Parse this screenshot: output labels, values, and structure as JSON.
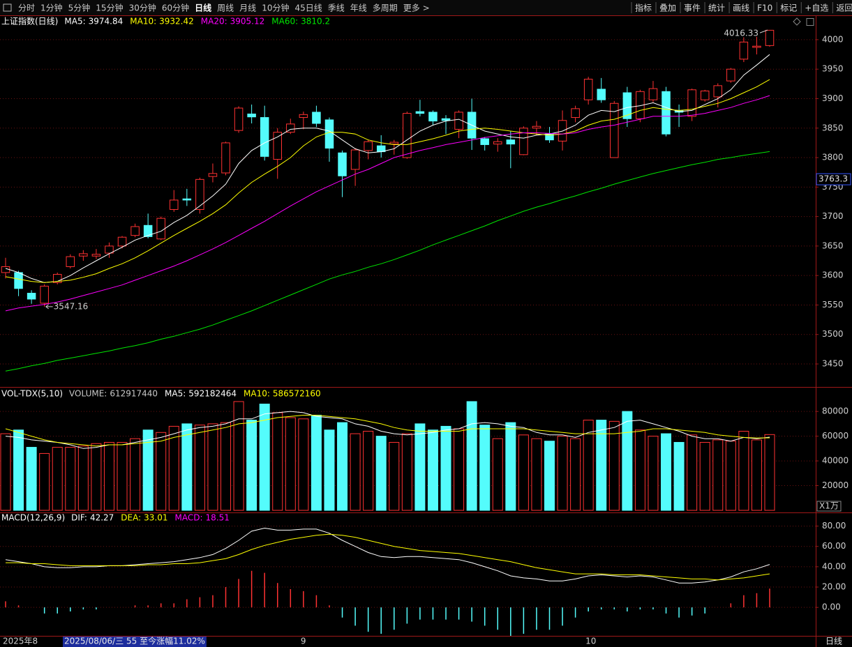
{
  "toolbar": {
    "tabs": [
      "分时",
      "1分钟",
      "5分钟",
      "15分钟",
      "30分钟",
      "60分钟",
      "日线",
      "周线",
      "月线",
      "10分钟",
      "45日线",
      "季线",
      "年线",
      "多周期",
      "更多 >"
    ],
    "active_index": 6,
    "buttons": [
      "指标",
      "叠加",
      "事件",
      "统计",
      "画线",
      "F10",
      "标记",
      "+自选",
      "返回"
    ]
  },
  "status_text": "2025/08/06/三 55 至今涨幅11.02%",
  "period_label": "日线",
  "chart_data": [
    {
      "type": "candlestick",
      "title": "上证指数(日线)",
      "categories": [
        "2025年8",
        null,
        null,
        null,
        null,
        null,
        null,
        null,
        null,
        null,
        null,
        null,
        null,
        null,
        null,
        null,
        null,
        null,
        null,
        null,
        null,
        null,
        null,
        "9",
        null,
        null,
        null,
        null,
        null,
        null,
        null,
        null,
        null,
        null,
        null,
        null,
        null,
        null,
        null,
        null,
        null,
        null,
        null,
        null,
        null,
        "10",
        null,
        null,
        null,
        null,
        null,
        null,
        null,
        null,
        null,
        null,
        null,
        null,
        null,
        null
      ],
      "open": [
        3605,
        3605,
        3570,
        3553,
        3588,
        3615,
        3633,
        3633,
        3638,
        3650,
        3668,
        3685,
        3662,
        3712,
        3730,
        3712,
        3768,
        3774,
        3846,
        3874,
        3868,
        3797,
        3843,
        3868,
        3877,
        3864,
        3808,
        3780,
        3812,
        3820,
        3823,
        3800,
        3878,
        3877,
        3866,
        3848,
        3877,
        3832,
        3823,
        3830,
        3805,
        3850,
        3840,
        3828,
        3868,
        3898,
        3916,
        3800,
        3910,
        3866,
        3898,
        3912,
        3880,
        3870,
        3898,
        3903,
        3930,
        3967,
        3987,
        3990
      ],
      "high": [
        3630,
        3608,
        3575,
        3585,
        3605,
        3636,
        3643,
        3645,
        3656,
        3667,
        3688,
        3705,
        3700,
        3745,
        3747,
        3766,
        3790,
        3827,
        3887,
        3890,
        3888,
        3850,
        3866,
        3878,
        3888,
        3868,
        3812,
        3816,
        3830,
        3838,
        3830,
        3878,
        3898,
        3880,
        3872,
        3880,
        3900,
        3835,
        3833,
        3845,
        3853,
        3862,
        3852,
        3880,
        3888,
        3937,
        3935,
        3896,
        3920,
        3915,
        3930,
        3920,
        3890,
        3917,
        3915,
        3926,
        3952,
        4004,
        4005,
        4016.33
      ],
      "low": [
        3595,
        3565,
        3552,
        3547.16,
        3585,
        3612,
        3625,
        3628,
        3630,
        3646,
        3665,
        3663,
        3660,
        3708,
        3718,
        3705,
        3758,
        3770,
        3842,
        3858,
        3795,
        3764,
        3840,
        3848,
        3852,
        3793,
        3733,
        3752,
        3797,
        3800,
        3805,
        3798,
        3870,
        3855,
        3840,
        3833,
        3813,
        3812,
        3810,
        3782,
        3804,
        3838,
        3825,
        3812,
        3860,
        3890,
        3893,
        3800,
        3852,
        3860,
        3894,
        3836,
        3852,
        3862,
        3895,
        3885,
        3927,
        3962,
        3975,
        3988
      ],
      "close": [
        3615,
        3578,
        3560,
        3582,
        3602,
        3632,
        3637,
        3636,
        3650,
        3665,
        3683,
        3666,
        3697,
        3728,
        3728,
        3763,
        3773,
        3825,
        3884,
        3869,
        3802,
        3843,
        3857,
        3873,
        3858,
        3816,
        3769,
        3813,
        3827,
        3810,
        3826,
        3875,
        3875,
        3862,
        3863,
        3877,
        3833,
        3822,
        3827,
        3823,
        3850,
        3853,
        3830,
        3863,
        3883,
        3933,
        3898,
        3892,
        3866,
        3912,
        3917,
        3840,
        3877,
        3915,
        3913,
        3922,
        3950,
        3996,
        3989,
        4016
      ],
      "up_color": "#ff3232",
      "down_color": "#54fcfc",
      "series": [
        {
          "name": "MA5:",
          "color": "#ffffff",
          "values": [
            3612,
            3605,
            3595,
            3588,
            3590,
            3600,
            3613,
            3625,
            3637,
            3648,
            3660,
            3668,
            3675,
            3690,
            3702,
            3718,
            3735,
            3755,
            3790,
            3812,
            3825,
            3835,
            3848,
            3850,
            3850,
            3845,
            3830,
            3815,
            3808,
            3810,
            3815,
            3830,
            3845,
            3855,
            3862,
            3865,
            3855,
            3845,
            3840,
            3835,
            3833,
            3838,
            3840,
            3845,
            3855,
            3872,
            3880,
            3878,
            3885,
            3888,
            3893,
            3885,
            3878,
            3880,
            3890,
            3900,
            3915,
            3940,
            3957,
            3974.84
          ]
        },
        {
          "name": "MA10:",
          "color": "#ffff00",
          "values": [
            3598,
            3594,
            3590,
            3588,
            3590,
            3592,
            3597,
            3603,
            3612,
            3620,
            3630,
            3642,
            3655,
            3668,
            3680,
            3692,
            3705,
            3720,
            3740,
            3758,
            3772,
            3785,
            3800,
            3820,
            3835,
            3843,
            3843,
            3840,
            3830,
            3825,
            3822,
            3822,
            3827,
            3832,
            3838,
            3845,
            3848,
            3850,
            3848,
            3845,
            3842,
            3840,
            3838,
            3840,
            3845,
            3855,
            3862,
            3865,
            3872,
            3880,
            3885,
            3882,
            3880,
            3882,
            3887,
            3892,
            3900,
            3910,
            3920,
            3932.42
          ]
        },
        {
          "name": "MA20:",
          "color": "#ff00ff",
          "values": [
            3540,
            3545,
            3548,
            3551,
            3555,
            3560,
            3566,
            3572,
            3578,
            3584,
            3592,
            3600,
            3608,
            3616,
            3625,
            3635,
            3645,
            3656,
            3668,
            3680,
            3692,
            3705,
            3718,
            3730,
            3742,
            3752,
            3762,
            3772,
            3780,
            3790,
            3800,
            3806,
            3812,
            3817,
            3822,
            3826,
            3830,
            3834,
            3837,
            3840,
            3842,
            3842,
            3841,
            3840,
            3842,
            3848,
            3852,
            3855,
            3860,
            3865,
            3870,
            3870,
            3870,
            3872,
            3875,
            3880,
            3885,
            3892,
            3898,
            3905.12
          ]
        },
        {
          "name": "MA60:",
          "color": "#00e600",
          "values": [
            3438,
            3442,
            3447,
            3451,
            3456,
            3460,
            3464,
            3468,
            3472,
            3477,
            3481,
            3486,
            3492,
            3497,
            3503,
            3509,
            3516,
            3524,
            3532,
            3540,
            3549,
            3558,
            3567,
            3576,
            3585,
            3594,
            3601,
            3607,
            3614,
            3620,
            3627,
            3635,
            3643,
            3652,
            3660,
            3668,
            3676,
            3684,
            3693,
            3701,
            3709,
            3716,
            3722,
            3729,
            3735,
            3742,
            3748,
            3755,
            3761,
            3767,
            3773,
            3778,
            3783,
            3788,
            3792,
            3797,
            3800,
            3804,
            3807,
            3810.2
          ]
        }
      ],
      "ylim": [
        3411,
        4020
      ],
      "yticks": [
        3450,
        3500,
        3550,
        3600,
        3650,
        3700,
        3750,
        3800,
        3850,
        3900,
        3950,
        4000
      ],
      "grid": true,
      "price_marker": 3763.3
    },
    {
      "type": "volume",
      "title": "VOL-TDX(5,10)",
      "unit": "X1万",
      "series": [
        {
          "name": "VOLUME:",
          "style": "bar",
          "color": "#c8c8c8",
          "values": [
            620000000,
            650000000,
            510000000,
            460000000,
            510000000,
            510000000,
            520000000,
            540000000,
            550000000,
            550000000,
            580000000,
            650000000,
            630000000,
            680000000,
            700000000,
            690000000,
            700000000,
            710000000,
            880000000,
            730000000,
            860000000,
            790000000,
            750000000,
            740000000,
            770000000,
            650000000,
            710000000,
            620000000,
            640000000,
            600000000,
            550000000,
            620000000,
            700000000,
            650000000,
            680000000,
            660000000,
            880000000,
            690000000,
            580000000,
            710000000,
            610000000,
            580000000,
            560000000,
            600000000,
            580000000,
            730000000,
            730000000,
            720000000,
            800000000,
            650000000,
            600000000,
            620000000,
            550000000,
            610000000,
            550000000,
            570000000,
            560000000,
            640000000,
            570000000,
            612917440
          ]
        },
        {
          "name": "MA5:",
          "style": "line",
          "color": "#ffffff",
          "values": [
            600000000,
            590000000,
            570000000,
            560000000,
            550000000,
            530000000,
            500000000,
            510000000,
            530000000,
            530000000,
            550000000,
            570000000,
            590000000,
            620000000,
            650000000,
            670000000,
            680000000,
            700000000,
            740000000,
            740000000,
            780000000,
            790000000,
            800000000,
            790000000,
            760000000,
            750000000,
            740000000,
            700000000,
            680000000,
            640000000,
            620000000,
            610000000,
            620000000,
            630000000,
            650000000,
            660000000,
            700000000,
            710000000,
            700000000,
            680000000,
            670000000,
            630000000,
            610000000,
            610000000,
            590000000,
            630000000,
            650000000,
            670000000,
            720000000,
            730000000,
            700000000,
            670000000,
            640000000,
            600000000,
            580000000,
            580000000,
            560000000,
            590000000,
            580000000,
            592182464
          ]
        },
        {
          "name": "MA10:",
          "style": "line",
          "color": "#ffff00",
          "values": [
            660000000,
            630000000,
            600000000,
            570000000,
            550000000,
            540000000,
            530000000,
            520000000,
            530000000,
            530000000,
            540000000,
            550000000,
            560000000,
            590000000,
            610000000,
            630000000,
            650000000,
            670000000,
            700000000,
            710000000,
            730000000,
            750000000,
            760000000,
            770000000,
            770000000,
            760000000,
            750000000,
            740000000,
            720000000,
            700000000,
            670000000,
            650000000,
            640000000,
            640000000,
            640000000,
            640000000,
            660000000,
            660000000,
            660000000,
            660000000,
            660000000,
            650000000,
            640000000,
            630000000,
            620000000,
            620000000,
            620000000,
            620000000,
            630000000,
            640000000,
            660000000,
            660000000,
            650000000,
            640000000,
            630000000,
            610000000,
            600000000,
            590000000,
            585000000,
            586572160
          ]
        }
      ],
      "ylim": [
        0,
        970000000
      ],
      "yticks": [
        {
          "value": 200000000,
          "label": "20000"
        },
        {
          "value": 400000000,
          "label": "40000"
        },
        {
          "value": 600000000,
          "label": "60000"
        },
        {
          "value": 800000000,
          "label": "80000"
        }
      ],
      "grid": true
    },
    {
      "type": "macd",
      "title": "MACD(12,26,9)",
      "series": [
        {
          "name": "DIF:",
          "style": "line",
          "color": "#ffffff",
          "values": [
            47,
            45,
            43,
            40,
            39,
            39,
            40,
            40,
            41,
            41,
            42,
            43,
            44,
            45,
            47,
            49,
            52,
            58,
            66,
            75,
            78,
            76,
            76,
            77,
            77,
            73,
            66,
            60,
            54,
            50,
            49,
            50,
            50,
            49,
            48,
            47,
            44,
            40,
            36,
            31,
            29,
            28,
            26,
            26,
            28,
            31,
            32,
            31,
            30,
            31,
            30,
            27,
            24,
            24,
            25,
            27,
            30,
            35,
            38,
            42.27
          ]
        },
        {
          "name": "DEA:",
          "style": "line",
          "color": "#ffff00",
          "values": [
            44,
            44,
            43,
            43,
            42,
            41,
            41,
            41,
            41,
            41,
            41,
            42,
            42,
            43,
            43,
            44,
            46,
            48,
            52,
            57,
            61,
            64,
            67,
            69,
            71,
            72,
            71,
            69,
            66,
            63,
            60,
            58,
            56,
            55,
            54,
            53,
            51,
            49,
            47,
            45,
            42,
            39,
            37,
            35,
            33,
            33,
            33,
            32,
            32,
            32,
            31,
            30,
            29,
            28,
            28,
            27,
            28,
            29,
            31,
            33.01
          ]
        },
        {
          "name": "MACD:",
          "style": "bar",
          "color": "#ff00ff",
          "values": [
            6,
            2,
            0,
            -6,
            -6,
            -4,
            -2,
            -2,
            0,
            0,
            2,
            2,
            4,
            4,
            8,
            10,
            12,
            20,
            28,
            36,
            34,
            24,
            18,
            16,
            12,
            2,
            -10,
            -18,
            -24,
            -26,
            -22,
            -16,
            -12,
            -12,
            -12,
            -12,
            -14,
            -18,
            -22,
            -28,
            -26,
            -22,
            -22,
            -18,
            -10,
            -4,
            -2,
            -2,
            -4,
            -2,
            -2,
            -6,
            -10,
            -8,
            -6,
            0,
            4,
            12,
            14,
            18.51
          ]
        }
      ],
      "ylim": [
        -28,
        90
      ],
      "yticks": [
        {
          "value": 0,
          "label": "0.00"
        },
        {
          "value": 20,
          "label": "20.00"
        },
        {
          "value": 40,
          "label": "40.00"
        },
        {
          "value": 60,
          "label": "60.00"
        },
        {
          "value": 80,
          "label": "80.00"
        }
      ],
      "grid": true
    }
  ]
}
